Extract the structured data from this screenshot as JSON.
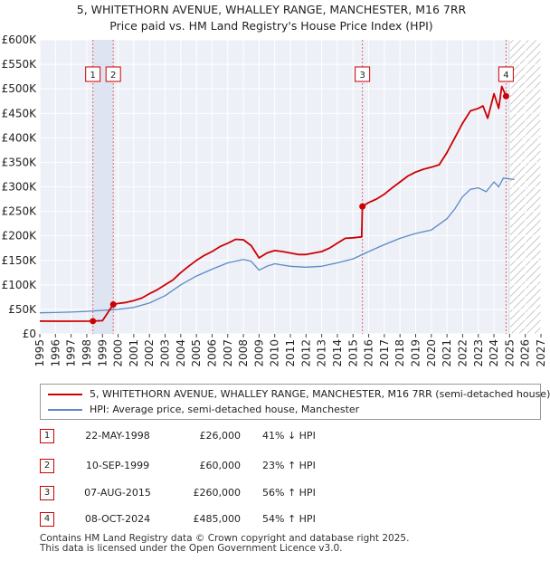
{
  "chart_data": {
    "type": "line",
    "title": "5, WHITETHORN AVENUE, WHALLEY RANGE, MANCHESTER, M16 7RR",
    "subtitle": "Price paid vs. HM Land Registry's House Price Index (HPI)",
    "xlim": [
      1995,
      2027
    ],
    "ylim": [
      0,
      600000
    ],
    "x_ticks": [
      "1995",
      "1996",
      "1997",
      "1998",
      "1999",
      "2000",
      "2001",
      "2002",
      "2003",
      "2004",
      "2005",
      "2006",
      "2007",
      "2008",
      "2009",
      "2010",
      "2011",
      "2012",
      "2013",
      "2014",
      "2015",
      "2016",
      "2017",
      "2018",
      "2019",
      "2020",
      "2021",
      "2022",
      "2023",
      "2024",
      "2025",
      "2026",
      "2027"
    ],
    "y_ticks": [
      {
        "value": 0,
        "label": "£0"
      },
      {
        "value": 50000,
        "label": "£50K"
      },
      {
        "value": 100000,
        "label": "£100K"
      },
      {
        "value": 150000,
        "label": "£150K"
      },
      {
        "value": 200000,
        "label": "£200K"
      },
      {
        "value": 250000,
        "label": "£250K"
      },
      {
        "value": 300000,
        "label": "£300K"
      },
      {
        "value": 350000,
        "label": "£350K"
      },
      {
        "value": 400000,
        "label": "£400K"
      },
      {
        "value": 450000,
        "label": "£450K"
      },
      {
        "value": 500000,
        "label": "£500K"
      },
      {
        "value": 550000,
        "label": "£550K"
      },
      {
        "value": 600000,
        "label": "£600K"
      }
    ],
    "grid": true,
    "future_from": 2025,
    "series": [
      {
        "name": "5, WHITETHORN AVENUE, WHALLEY RANGE, MANCHESTER, M16 7RR (semi-detached house)",
        "color": "#cc0000",
        "points": [
          [
            1995,
            26000
          ],
          [
            1996,
            25800
          ],
          [
            1997,
            25900
          ],
          [
            1998.39,
            26000
          ],
          [
            1999.0,
            27000
          ],
          [
            1999.69,
            60000
          ],
          [
            2000,
            62000
          ],
          [
            2000.5,
            64000
          ],
          [
            2001,
            68000
          ],
          [
            2001.5,
            73000
          ],
          [
            2002,
            82000
          ],
          [
            2002.5,
            90000
          ],
          [
            2003,
            100000
          ],
          [
            2003.5,
            110000
          ],
          [
            2004,
            125000
          ],
          [
            2004.5,
            138000
          ],
          [
            2005,
            150000
          ],
          [
            2005.5,
            160000
          ],
          [
            2006,
            168000
          ],
          [
            2006.5,
            178000
          ],
          [
            2007,
            185000
          ],
          [
            2007.5,
            193000
          ],
          [
            2008,
            192000
          ],
          [
            2008.5,
            180000
          ],
          [
            2009,
            155000
          ],
          [
            2009.5,
            165000
          ],
          [
            2010,
            170000
          ],
          [
            2010.5,
            168000
          ],
          [
            2011,
            165000
          ],
          [
            2011.5,
            162000
          ],
          [
            2012,
            162000
          ],
          [
            2012.5,
            165000
          ],
          [
            2013,
            168000
          ],
          [
            2013.5,
            175000
          ],
          [
            2014,
            185000
          ],
          [
            2014.5,
            195000
          ],
          [
            2015.0,
            196000
          ],
          [
            2015.55,
            198000
          ],
          [
            2015.6,
            260000
          ],
          [
            2016,
            268000
          ],
          [
            2016.5,
            275000
          ],
          [
            2017,
            285000
          ],
          [
            2017.5,
            298000
          ],
          [
            2018,
            310000
          ],
          [
            2018.5,
            322000
          ],
          [
            2019,
            330000
          ],
          [
            2019.5,
            336000
          ],
          [
            2020,
            340000
          ],
          [
            2020.5,
            345000
          ],
          [
            2021,
            370000
          ],
          [
            2021.5,
            400000
          ],
          [
            2022,
            430000
          ],
          [
            2022.5,
            455000
          ],
          [
            2023,
            460000
          ],
          [
            2023.3,
            465000
          ],
          [
            2023.6,
            440000
          ],
          [
            2024,
            490000
          ],
          [
            2024.3,
            460000
          ],
          [
            2024.5,
            505000
          ],
          [
            2024.77,
            485000
          ]
        ]
      },
      {
        "name": "HPI: Average price, semi-detached house, Manchester",
        "color": "#5b8ac6",
        "points": [
          [
            1995,
            43000
          ],
          [
            1996,
            43500
          ],
          [
            1997,
            44500
          ],
          [
            1998,
            46000
          ],
          [
            1999,
            48000
          ],
          [
            2000,
            50000
          ],
          [
            2001,
            54000
          ],
          [
            2002,
            63000
          ],
          [
            2003,
            78000
          ],
          [
            2004,
            100000
          ],
          [
            2005,
            118000
          ],
          [
            2006,
            132000
          ],
          [
            2007,
            145000
          ],
          [
            2008,
            152000
          ],
          [
            2008.5,
            148000
          ],
          [
            2009,
            130000
          ],
          [
            2009.5,
            138000
          ],
          [
            2010,
            143000
          ],
          [
            2011,
            138000
          ],
          [
            2012,
            136000
          ],
          [
            2013,
            138000
          ],
          [
            2014,
            145000
          ],
          [
            2015,
            153000
          ],
          [
            2016,
            168000
          ],
          [
            2017,
            182000
          ],
          [
            2018,
            195000
          ],
          [
            2019,
            205000
          ],
          [
            2020,
            212000
          ],
          [
            2021,
            235000
          ],
          [
            2021.5,
            255000
          ],
          [
            2022,
            280000
          ],
          [
            2022.5,
            295000
          ],
          [
            2023,
            298000
          ],
          [
            2023.5,
            290000
          ],
          [
            2024,
            310000
          ],
          [
            2024.3,
            300000
          ],
          [
            2024.6,
            318000
          ],
          [
            2025.3,
            315000
          ]
        ]
      }
    ],
    "sales": [
      {
        "id": "1",
        "x": 1998.39,
        "y": 26000
      },
      {
        "id": "2",
        "x": 1999.69,
        "y": 60000
      },
      {
        "id": "3",
        "x": 2015.6,
        "y": 260000
      },
      {
        "id": "4",
        "x": 2024.77,
        "y": 485000
      }
    ]
  },
  "legend": {
    "items": [
      {
        "label": "5, WHITETHORN AVENUE, WHALLEY RANGE, MANCHESTER, M16 7RR (semi-detached house)",
        "color": "#cc0000"
      },
      {
        "label": "HPI: Average price, semi-detached house, Manchester",
        "color": "#5b8ac6"
      }
    ]
  },
  "transactions": [
    {
      "id": "1",
      "date": "22-MAY-1998",
      "price": "£26,000",
      "hpi": "41% ↓ HPI"
    },
    {
      "id": "2",
      "date": "10-SEP-1999",
      "price": "£60,000",
      "hpi": "23% ↑ HPI"
    },
    {
      "id": "3",
      "date": "07-AUG-2015",
      "price": "£260,000",
      "hpi": "56% ↑ HPI"
    },
    {
      "id": "4",
      "date": "08-OCT-2024",
      "price": "£485,000",
      "hpi": "54% ↑ HPI"
    }
  ],
  "footer": {
    "line1": "Contains HM Land Registry data © Crown copyright and database right 2025.",
    "line2": "This data is licensed under the Open Government Licence v3.0."
  }
}
